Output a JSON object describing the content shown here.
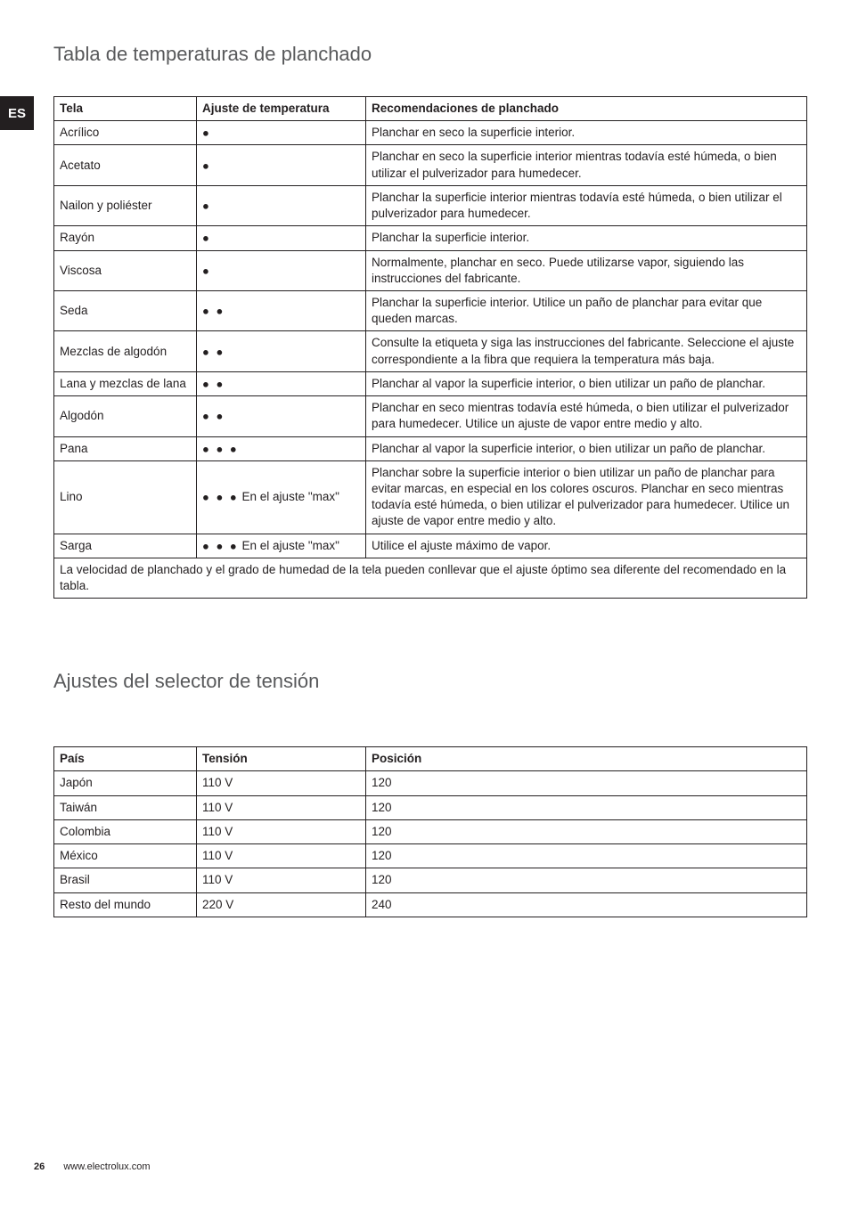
{
  "lang_tab": "ES",
  "heading_table1": "Tabla de temperaturas de planchado",
  "heading_table2": "Ajustes del selector de tensión",
  "dots": {
    "one": "●",
    "two": "● ●",
    "three": "● ● ●"
  },
  "ironing_table": {
    "headers": {
      "tela": "Tela",
      "ajuste": "Ajuste de temperatura",
      "reco": "Recomendaciones de planchado"
    },
    "rows": [
      {
        "tela": "Acrílico",
        "dots": 1,
        "ajuste_suffix": "",
        "reco": "Planchar en seco la superficie interior."
      },
      {
        "tela": "Acetato",
        "dots": 1,
        "ajuste_suffix": "",
        "reco": "Planchar en seco la superficie interior mientras todavía esté húmeda, o bien utilizar el pulverizador para humedecer."
      },
      {
        "tela": "Nailon y poliéster",
        "dots": 1,
        "ajuste_suffix": "",
        "reco": "Planchar la superficie interior mientras todavía esté húmeda, o bien utilizar el pulverizador para humedecer."
      },
      {
        "tela": "Rayón",
        "dots": 1,
        "ajuste_suffix": "",
        "reco": "Planchar la superficie interior."
      },
      {
        "tela": "Viscosa",
        "dots": 1,
        "ajuste_suffix": "",
        "reco": "Normalmente, planchar en seco. Puede utilizarse vapor, siguiendo las instrucciones del fabricante."
      },
      {
        "tela": "Seda",
        "dots": 2,
        "ajuste_suffix": "",
        "reco": "Planchar la superficie interior. Utilice un paño de planchar para evitar que queden marcas."
      },
      {
        "tela": "Mezclas de algodón",
        "dots": 2,
        "ajuste_suffix": "",
        "reco": "Consulte la etiqueta y siga las instrucciones del fabricante. Seleccione el ajuste correspondiente a la fibra que requiera la temperatura más baja."
      },
      {
        "tela": "Lana y mezclas de lana",
        "dots": 2,
        "ajuste_suffix": "",
        "reco": "Planchar al vapor la superficie interior, o bien utilizar un paño de planchar."
      },
      {
        "tela": "Algodón",
        "dots": 2,
        "ajuste_suffix": "",
        "reco": "Planchar en seco mientras todavía esté húmeda, o bien utilizar el pulverizador para humedecer. Utilice un ajuste de vapor entre medio y alto."
      },
      {
        "tela": "Pana",
        "dots": 3,
        "ajuste_suffix": "",
        "reco": "Planchar al vapor la superficie interior, o bien utilizar un paño de planchar."
      },
      {
        "tela": "Lino",
        "dots": 3,
        "ajuste_suffix": " En el ajuste \"max\"",
        "reco": "Planchar sobre la superficie interior o bien utilizar un paño de planchar para evitar marcas, en especial en los colores oscuros. Planchar en seco mientras todavía esté húmeda, o bien utilizar el pulverizador para humedecer. Utilice un ajuste de vapor entre medio y alto."
      },
      {
        "tela": "Sarga",
        "dots": 3,
        "ajuste_suffix": " En el ajuste \"max\"",
        "reco": "Utilice el ajuste máximo de vapor."
      }
    ],
    "footnote": "La velocidad de planchado y el grado de humedad de la tela pueden conllevar que el ajuste óptimo sea diferente del recomendado en la tabla."
  },
  "voltage_table": {
    "headers": {
      "pais": "País",
      "tension": "Tensión",
      "posicion": "Posición"
    },
    "rows": [
      {
        "pais": "Japón",
        "tension": "110 V",
        "posicion": "120"
      },
      {
        "pais": "Taiwán",
        "tension": "110 V",
        "posicion": "120"
      },
      {
        "pais": "Colombia",
        "tension": "110 V",
        "posicion": "120"
      },
      {
        "pais": "México",
        "tension": "110 V",
        "posicion": "120"
      },
      {
        "pais": "Brasil",
        "tension": "110 V",
        "posicion": "120"
      },
      {
        "pais": "Resto del mundo",
        "tension": "220 V",
        "posicion": "240"
      }
    ]
  },
  "footer": {
    "page_number": "26",
    "url": "www.electrolux.com"
  }
}
